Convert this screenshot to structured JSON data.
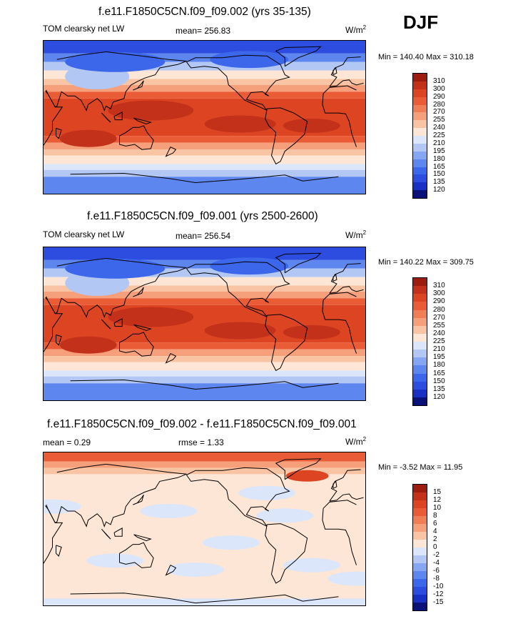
{
  "season": "DJF",
  "colors": {
    "abs_palette": [
      "#0a1178",
      "#1a2fc4",
      "#2c4de0",
      "#3d67ea",
      "#5e86ef",
      "#87a6f2",
      "#b3c7f5",
      "#dce6fb",
      "#fde6d5",
      "#f9c4a3",
      "#f5a07a",
      "#ef7d55",
      "#ea5c36",
      "#dd4522",
      "#c3311a",
      "#9c1c0f"
    ],
    "diff_palette": [
      "#0a1178",
      "#1a2fc4",
      "#2c4de0",
      "#3d67ea",
      "#5e86ef",
      "#87a6f2",
      "#b3c7f5",
      "#dce6fb",
      "#fde6d5",
      "#f9c4a3",
      "#f5a07a",
      "#ef7d55",
      "#ea5c36",
      "#dd4522",
      "#c3311a",
      "#9c1c0f"
    ]
  },
  "chart_data": [
    {
      "type": "heatmap",
      "title": "f.e11.F1850C5CN.f09_f09.002 (yrs 35-135)",
      "left_label": "TOM clearsky net LW",
      "stat_label": "mean= 256.83",
      "units": "W/m",
      "units_sup": "2",
      "range_label": "Min = 140.40 Max = 310.18",
      "min": 140.4,
      "max": 310.18,
      "mean": 256.83,
      "contour_levels": [
        "310",
        "300",
        "290",
        "280",
        "270",
        "255",
        "240",
        "225",
        "210",
        "195",
        "180",
        "165",
        "150",
        "135",
        "120"
      ]
    },
    {
      "type": "heatmap",
      "title": "f.e11.F1850C5CN.f09_f09.001 (yrs 2500-2600)",
      "left_label": "TOM clearsky net LW",
      "stat_label": "mean= 256.54",
      "units": "W/m",
      "units_sup": "2",
      "range_label": "Min = 140.22 Max = 309.75",
      "min": 140.22,
      "max": 309.75,
      "mean": 256.54,
      "contour_levels": [
        "310",
        "300",
        "290",
        "280",
        "270",
        "255",
        "240",
        "225",
        "210",
        "195",
        "180",
        "165",
        "150",
        "135",
        "120"
      ]
    },
    {
      "type": "heatmap",
      "title": "f.e11.F1850C5CN.f09_f09.002 - f.e11.F1850C5CN.f09_f09.001",
      "left_label": "mean =   0.29",
      "stat_label": "rmse =   1.33",
      "units": "W/m",
      "units_sup": "2",
      "range_label": "Min =  -3.52 Max =  11.95",
      "min": -3.52,
      "max": 11.95,
      "mean": 0.29,
      "rmse": 1.33,
      "contour_levels": [
        "15",
        "12",
        "10",
        "8",
        "6",
        "4",
        "2",
        "0",
        "-2",
        "-4",
        "-6",
        "-8",
        "-10",
        "-12",
        "-15"
      ]
    }
  ]
}
